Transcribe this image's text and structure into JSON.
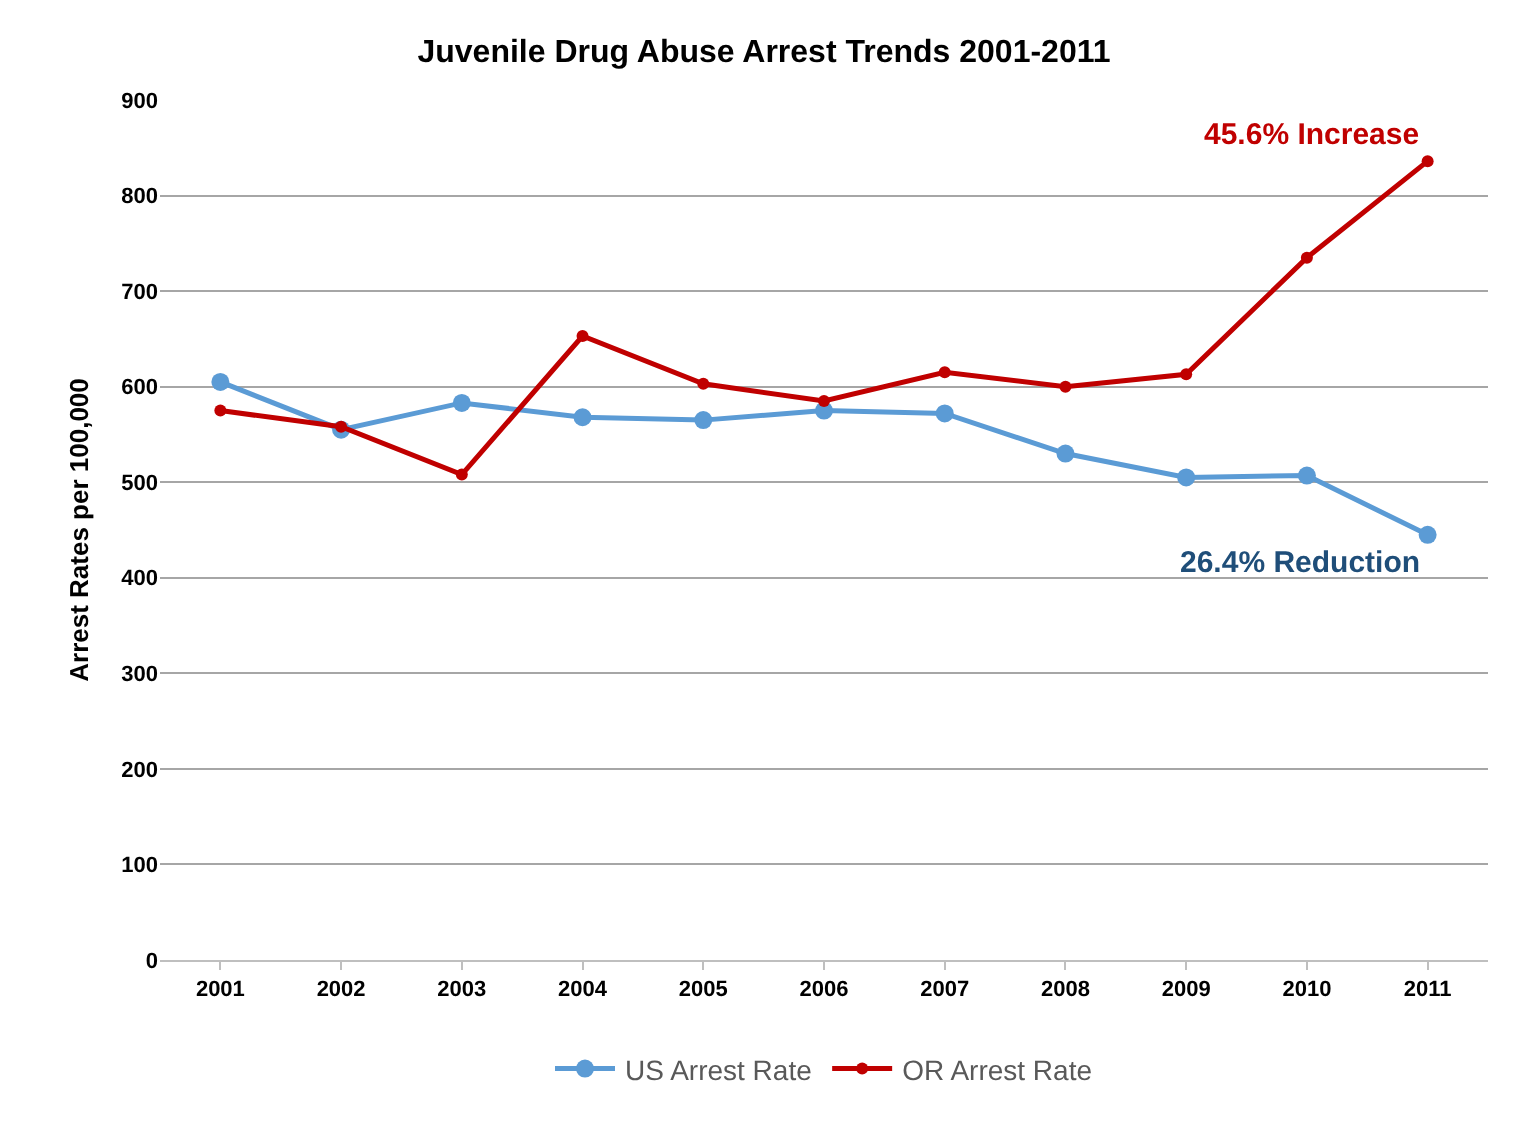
{
  "chart_data": {
    "type": "line",
    "title": "Juvenile Drug Abuse Arrest Trends 2001-2011",
    "ylabel": "Arrest Rates per 100,000",
    "categories": [
      "2001",
      "2002",
      "2003",
      "2004",
      "2005",
      "2006",
      "2007",
      "2008",
      "2009",
      "2010",
      "2011"
    ],
    "series": [
      {
        "name": "US Arrest Rate",
        "color": "#5b9bd5",
        "values": [
          605,
          555,
          583,
          568,
          565,
          575,
          572,
          530,
          505,
          507,
          445
        ]
      },
      {
        "name": "OR Arrest Rate",
        "color": "#c00000",
        "values": [
          575,
          558,
          508,
          653,
          603,
          585,
          615,
          600,
          613,
          735,
          836
        ]
      }
    ],
    "ylim": [
      0,
      900
    ],
    "yticks": [
      0,
      100,
      200,
      300,
      400,
      500,
      600,
      700,
      800,
      900
    ],
    "annotations": [
      {
        "text": "45.6% Increase",
        "x": "2011",
        "y": 836
      },
      {
        "text": "26.4% Reduction",
        "x": "2011",
        "y": 445
      }
    ],
    "grid": "y",
    "legend": "bottom",
    "marker": "circle",
    "line_style": "solid"
  }
}
